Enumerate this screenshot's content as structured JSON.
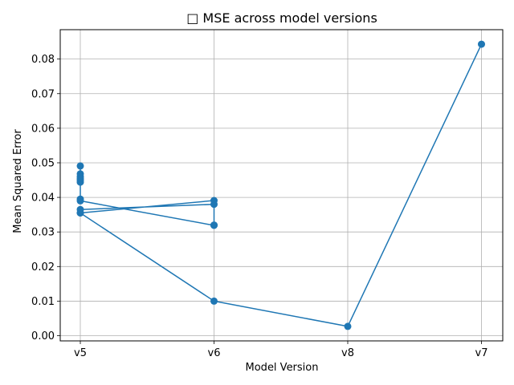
{
  "chart_data": {
    "type": "line",
    "title": "□ MSE across model versions",
    "xlabel": "Model Version",
    "ylabel": "Mean Squared Error",
    "categories": [
      "v5",
      "v6",
      "v8",
      "v7"
    ],
    "ylim": [
      -0.0015,
      0.0885
    ],
    "yticks": [
      0.0,
      0.01,
      0.02,
      0.03,
      0.04,
      0.05,
      0.06,
      0.07,
      0.08
    ],
    "ytick_labels": [
      "0.00",
      "0.01",
      "0.02",
      "0.03",
      "0.04",
      "0.05",
      "0.06",
      "0.07",
      "0.08"
    ],
    "grid": true,
    "color": "#1f77b4",
    "series": [
      {
        "x": [
          "v5",
          "v5",
          "v5",
          "v5",
          "v5",
          "v5",
          "v5",
          "v5",
          "v6",
          "v6",
          "v6",
          "v5",
          "v5",
          "v6",
          "v5",
          "v6",
          "v8",
          "v7"
        ],
        "values": [
          0.0491,
          0.0468,
          0.046,
          0.045,
          0.0444,
          0.0455,
          0.0395,
          0.039,
          0.0319,
          0.032,
          0.038,
          0.0365,
          0.0355,
          0.0391,
          0.0355,
          0.01,
          0.0027,
          0.0843
        ]
      }
    ]
  }
}
